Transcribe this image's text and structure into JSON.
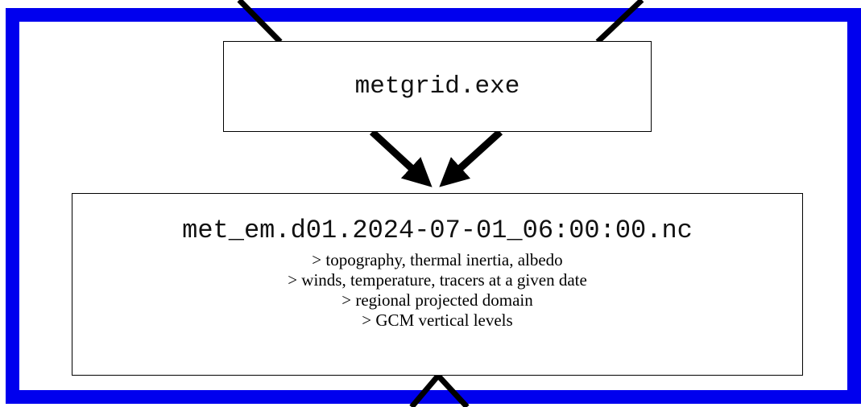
{
  "diagram": {
    "top_banner_text": "",
    "metgrid_box": {
      "label": "metgrid.exe"
    },
    "met_em_box": {
      "filename": "met_em.d01.2024-07-01_06:00:00.nc",
      "items": [
        "> topography, thermal inertia, albedo",
        "> winds, temperature, tracers at a given date",
        "> regional projected domain",
        "> GCM vertical levels"
      ]
    },
    "colors": {
      "frame": "#0000ee",
      "lines": "#000000",
      "box_border": "#000000"
    }
  }
}
